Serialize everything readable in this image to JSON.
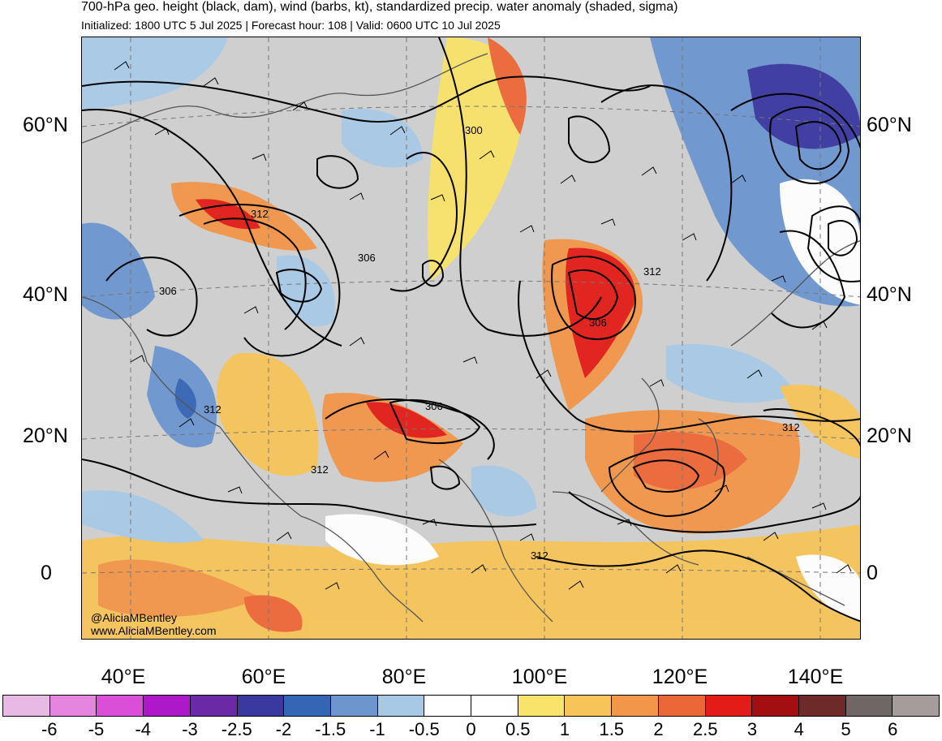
{
  "header": {
    "title": "700-hPa geo. height (black, dam), wind (barbs, kt), standardized precip. water anomaly (shaded, sigma)",
    "subtitle": "Initialized: 1800 UTC 5 Jul 2025 | Forecast hour: 108 | Valid: 0600 UTC 10 Jul 2025"
  },
  "map": {
    "lat_labels_left": [
      "60°N",
      "40°N",
      "20°N",
      "0"
    ],
    "lat_labels_right": [
      "60°N",
      "40°N",
      "20°N",
      "0"
    ],
    "lon_labels": [
      "40°E",
      "60°E",
      "80°E",
      "100°E",
      "120°E",
      "140°E"
    ],
    "contour_labels": [
      "300",
      "312",
      "306",
      "306",
      "312",
      "306",
      "312",
      "306",
      "312",
      "312",
      "312",
      "312"
    ],
    "credits": [
      "@AliciaMBentley",
      "www.AliciaMBentley.com"
    ]
  },
  "colorbar": {
    "labels": [
      "-6",
      "-5",
      "-4",
      "-3",
      "-2.5",
      "-2",
      "-1.5",
      "-1",
      "-0.5",
      "0",
      "0.5",
      "1",
      "1.5",
      "2",
      "2.5",
      "3",
      "4",
      "5",
      "6"
    ],
    "colors": [
      "#e9b9e6",
      "#e685e0",
      "#d94fd8",
      "#ad18c8",
      "#6a2aa6",
      "#3a39a0",
      "#3565b5",
      "#6d96cf",
      "#a8c9e6",
      "#ffffff",
      "#ffffff",
      "#f9e36a",
      "#f7c45a",
      "#f29649",
      "#ec6738",
      "#e31c18",
      "#a30f10",
      "#6e2a28",
      "#6f6666",
      "#a69c9c"
    ]
  }
}
